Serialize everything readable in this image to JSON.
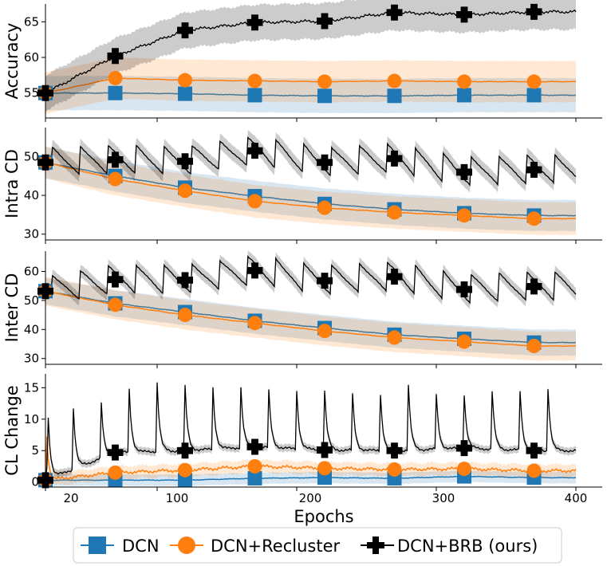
{
  "figure": {
    "xlabel": "Epochs",
    "x_ticks": [
      20,
      100,
      200,
      300,
      400
    ]
  },
  "legend": {
    "placement": "bottom-center",
    "items": [
      {
        "label": "DCN",
        "color": "#1f77b4",
        "marker": "square"
      },
      {
        "label": "DCN+Recluster",
        "color": "#ff7f0e",
        "marker": "circle"
      },
      {
        "label": "DCN+BRB (ours)",
        "color": "#000000",
        "marker": "plus"
      }
    ]
  },
  "chart_data": [
    {
      "type": "line",
      "ylabel": "Accuracy",
      "xlim": [
        20,
        400
      ],
      "ylim": [
        51.5,
        67.5
      ],
      "y_ticks": [
        55,
        60,
        65
      ],
      "marker_x": [
        20,
        70,
        120,
        170,
        220,
        270,
        320,
        370
      ],
      "series": [
        {
          "name": "DCN",
          "color": "#1f77b4",
          "marker": "square",
          "markers_y": [
            55.0,
            55.0,
            54.9,
            54.7,
            54.6,
            54.6,
            54.7,
            54.7
          ],
          "band": 2.4
        },
        {
          "name": "DCN+Recluster",
          "color": "#ff7f0e",
          "marker": "circle",
          "markers_y": [
            55.0,
            57.1,
            56.8,
            56.7,
            56.6,
            56.7,
            56.6,
            56.6
          ],
          "band": 2.9
        },
        {
          "name": "DCN+BRB (ours)",
          "color": "#000000",
          "marker": "plus",
          "markers_y": [
            55.0,
            60.2,
            63.8,
            64.9,
            65.1,
            66.3,
            66.0,
            66.4
          ],
          "band": 2.5
        }
      ]
    },
    {
      "type": "line",
      "ylabel": "Intra CD",
      "xlim": [
        20,
        400
      ],
      "ylim": [
        28.5,
        57.5
      ],
      "y_ticks": [
        30,
        40,
        50
      ],
      "marker_x": [
        20,
        70,
        120,
        170,
        220,
        270,
        320,
        370
      ],
      "series": [
        {
          "name": "DCN",
          "color": "#1f77b4",
          "marker": "square",
          "markers_y": [
            48.5,
            45.0,
            42.0,
            39.8,
            37.8,
            36.4,
            35.4,
            34.8
          ],
          "band": 4.0
        },
        {
          "name": "DCN+Recluster",
          "color": "#ff7f0e",
          "marker": "circle",
          "markers_y": [
            48.5,
            44.2,
            41.2,
            38.5,
            36.8,
            35.6,
            34.8,
            34.0
          ],
          "band": 4.2
        },
        {
          "name": "DCN+BRB (ours)",
          "color": "#000000",
          "marker": "plus",
          "markers_y": [
            48.5,
            49.2,
            48.8,
            51.5,
            48.5,
            49.5,
            46.0,
            46.6
          ],
          "band": 2.0
        }
      ]
    },
    {
      "type": "line",
      "ylabel": "Inter CD",
      "xlim": [
        20,
        400
      ],
      "ylim": [
        28,
        67
      ],
      "y_ticks": [
        30,
        40,
        50,
        60
      ],
      "marker_x": [
        20,
        70,
        120,
        170,
        220,
        270,
        320,
        370
      ],
      "series": [
        {
          "name": "DCN",
          "color": "#1f77b4",
          "marker": "square",
          "markers_y": [
            53.2,
            49.0,
            46.0,
            43.0,
            40.5,
            38.2,
            36.8,
            35.5
          ],
          "band": 4.5
        },
        {
          "name": "DCN+Recluster",
          "color": "#ff7f0e",
          "marker": "circle",
          "markers_y": [
            53.2,
            48.5,
            45.0,
            42.2,
            39.5,
            37.2,
            35.8,
            34.3
          ],
          "band": 5.0
        },
        {
          "name": "DCN+BRB (ours)",
          "color": "#000000",
          "marker": "plus",
          "markers_y": [
            53.2,
            57.2,
            57.0,
            60.3,
            56.8,
            58.2,
            53.8,
            54.8
          ],
          "band": 2.2
        }
      ]
    },
    {
      "type": "line",
      "ylabel": "CL Change",
      "xlim": [
        20,
        400
      ],
      "ylim": [
        -0.8,
        17.2
      ],
      "y_ticks": [
        0,
        5,
        10,
        15
      ],
      "marker_x": [
        20,
        70,
        120,
        170,
        220,
        270,
        320,
        370
      ],
      "spike_x": [
        22,
        40,
        60,
        80,
        100,
        120,
        140,
        160,
        180,
        200,
        220,
        240,
        260,
        280,
        300,
        320,
        340,
        360,
        380
      ],
      "spike_y": [
        10.2,
        11.8,
        12.5,
        14.8,
        15.8,
        15.2,
        15.0,
        15.0,
        14.5,
        14.5,
        14.5,
        14.0,
        14.0,
        15.5,
        14.0,
        14.0,
        14.5,
        14.5,
        15.0
      ],
      "series": [
        {
          "name": "DCN",
          "color": "#1f77b4",
          "marker": "square",
          "markers_y": [
            0.3,
            0.3,
            0.3,
            0.6,
            0.7,
            0.6,
            0.9,
            0.7
          ],
          "band": 0.9
        },
        {
          "name": "DCN+Recluster",
          "color": "#ff7f0e",
          "marker": "circle",
          "markers_y": [
            0.3,
            1.5,
            1.9,
            2.5,
            2.2,
            2.0,
            2.1,
            1.8
          ],
          "band": 1.0
        },
        {
          "name": "DCN+BRB (ours)",
          "color": "#000000",
          "marker": "plus",
          "markers_y": [
            0.3,
            4.7,
            5.0,
            5.6,
            5.1,
            5.0,
            5.4,
            5.0
          ],
          "band": 0.6
        }
      ]
    }
  ]
}
